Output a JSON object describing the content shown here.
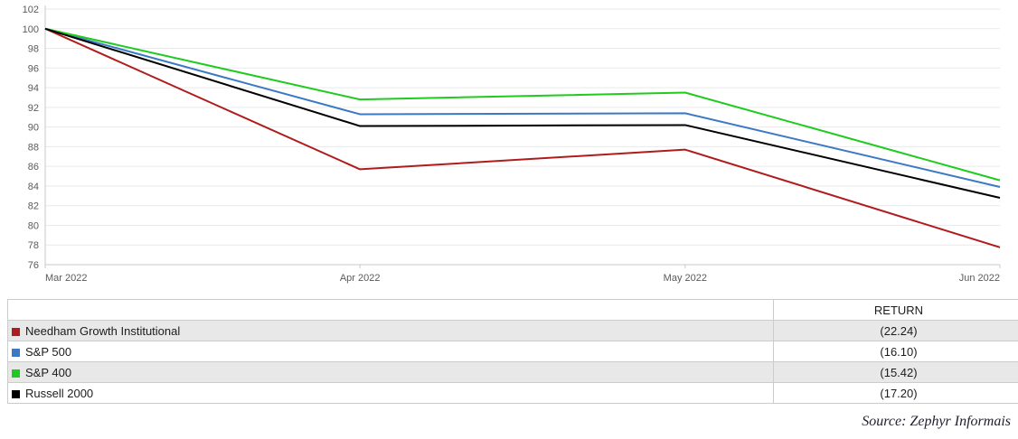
{
  "chart_data": {
    "type": "line",
    "title": "",
    "xlabel": "",
    "ylabel": "",
    "x_labels": [
      "Mar 2022",
      "Apr 2022",
      "May 2022",
      "Jun 2022"
    ],
    "ylim": [
      76,
      102
    ],
    "ytick_step": 2,
    "grid": true,
    "legend_position": "table-below",
    "series": [
      {
        "name": "Needham Growth Institutional",
        "color": "#B01C1C",
        "values": [
          100,
          85.7,
          87.7,
          77.76
        ]
      },
      {
        "name": "S&P 500",
        "color": "#3B79C4",
        "values": [
          100,
          91.3,
          91.4,
          83.9
        ]
      },
      {
        "name": "S&P 400",
        "color": "#1FCB1F",
        "values": [
          100,
          92.8,
          93.5,
          84.58
        ]
      },
      {
        "name": "Russell 2000",
        "color": "#000000",
        "values": [
          100,
          90.1,
          90.2,
          82.8
        ]
      }
    ]
  },
  "table": {
    "return_header": "RETURN",
    "rows": [
      {
        "label": "Needham Growth Institutional",
        "return": "(22.24)",
        "color": "#B01C1C"
      },
      {
        "label": "S&P 500",
        "return": "(16.10)",
        "color": "#3B79C4"
      },
      {
        "label": "S&P 400",
        "return": "(15.42)",
        "color": "#1FCB1F"
      },
      {
        "label": "Russell 2000",
        "return": "(17.20)",
        "color": "#000000"
      }
    ]
  },
  "source": "Source: Zephyr Informais"
}
